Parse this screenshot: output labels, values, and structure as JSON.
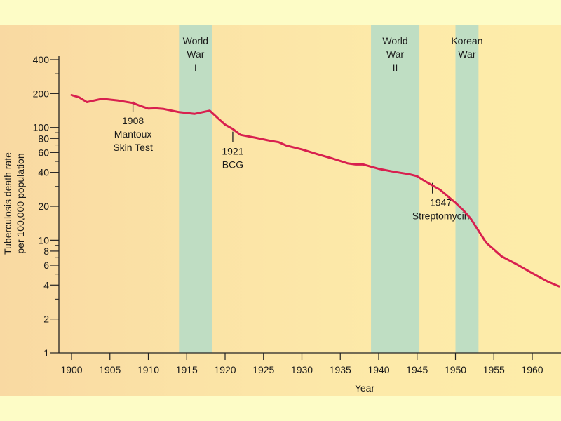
{
  "chart_data": {
    "type": "line",
    "title": "",
    "xlabel": "Year",
    "ylabel_lines": [
      "Tuberculosis death rate",
      "per 100,000 population"
    ],
    "xlim": [
      1899,
      1963.5
    ],
    "ylim": [
      1,
      430
    ],
    "yscale": "log",
    "x_ticks": [
      1900,
      1905,
      1910,
      1915,
      1920,
      1925,
      1930,
      1935,
      1940,
      1945,
      1950,
      1955,
      1960
    ],
    "y_ticks": [
      1,
      2,
      4,
      6,
      8,
      10,
      20,
      40,
      60,
      80,
      100,
      200,
      400
    ],
    "line_color": "#d8204f",
    "band_color": "#b4dcc8",
    "series": [
      {
        "name": "Tuberculosis death rate",
        "x": [
          1900,
          1901,
          1902,
          1904,
          1906,
          1908,
          1909,
          1910,
          1911,
          1912,
          1914,
          1916,
          1918,
          1919,
          1920,
          1921,
          1922,
          1924,
          1926,
          1927,
          1928,
          1930,
          1932,
          1934,
          1936,
          1937,
          1938,
          1940,
          1942,
          1944,
          1945,
          1946,
          1948,
          1950,
          1951,
          1952,
          1954,
          1956,
          1958,
          1960,
          1962,
          1963.5
        ],
        "values": [
          194,
          185,
          168,
          180,
          174,
          165,
          155,
          147,
          148,
          146,
          137,
          132,
          141,
          122,
          106,
          97,
          86,
          81,
          76,
          74,
          69,
          64,
          58,
          53,
          48,
          47,
          47,
          43,
          40.5,
          38.5,
          37,
          33.5,
          28,
          21.5,
          18.5,
          15.5,
          9.5,
          7.2,
          6.1,
          5.1,
          4.3,
          3.9
        ]
      }
    ],
    "shaded_periods": [
      {
        "label_lines": [
          "World",
          "War",
          "I"
        ],
        "x_start": 1914,
        "x_end": 1918.3
      },
      {
        "label_lines": [
          "World",
          "War",
          "II"
        ],
        "x_start": 1939,
        "x_end": 1945.3
      },
      {
        "label_lines": [
          "Korean",
          "War"
        ],
        "x_start": 1950,
        "x_end": 1953
      }
    ],
    "annotations": [
      {
        "lines": [
          "1908",
          "Mantoux",
          "Skin Test"
        ],
        "x": 1908,
        "y": 138
      },
      {
        "lines": [
          "1921",
          "BCG"
        ],
        "x": 1921,
        "y": 74
      },
      {
        "lines": [
          "1947",
          "Streptomycin"
        ],
        "x": 1947,
        "y": 26
      }
    ]
  }
}
